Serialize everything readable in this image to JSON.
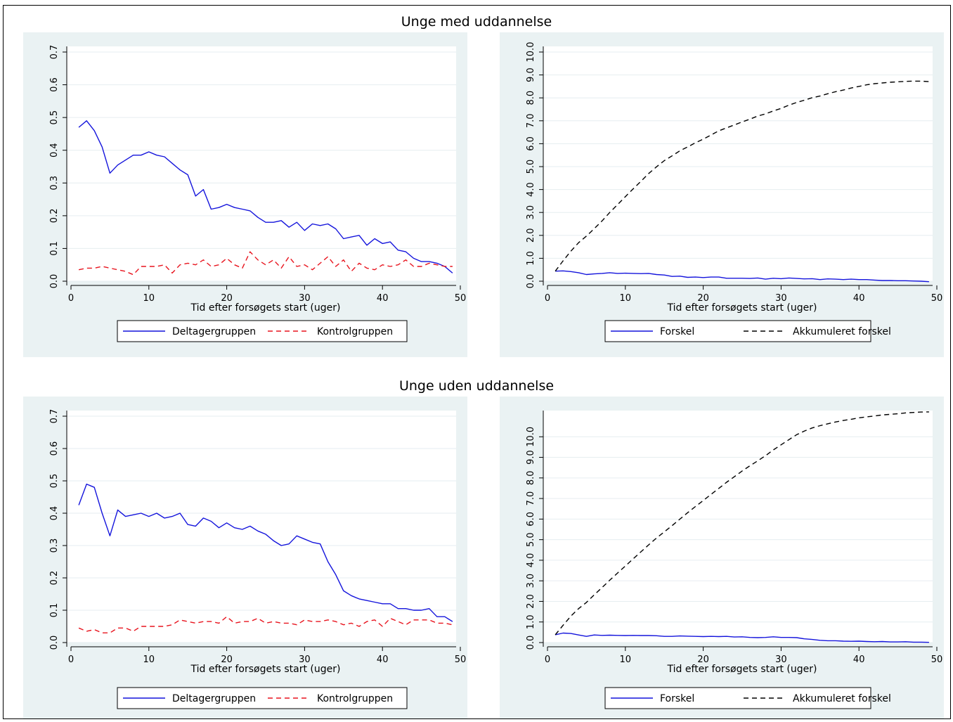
{
  "groups": [
    {
      "title": "Unge med uddannelse"
    },
    {
      "title": "Unge uden uddannelse"
    }
  ],
  "colors": {
    "panel_bg": "#eaf2f3",
    "blue": "#1414dc",
    "red": "#e8141e",
    "black": "#000000",
    "grid": "#ffffff"
  },
  "chart_data": [
    {
      "type": "line",
      "group": "Unge med uddannelse",
      "xlabel": "Tid efter forsøgets start (uger)",
      "ylabel": "",
      "xlim": [
        0,
        50
      ],
      "ylim": [
        0,
        0.7
      ],
      "xticks": [
        0,
        10,
        20,
        30,
        40,
        50
      ],
      "yticks": [
        0,
        0.1,
        0.2,
        0.3,
        0.4,
        0.5,
        0.6,
        0.7
      ],
      "ytick_labels": [
        "0.0",
        "0.1",
        "0.2",
        "0.3",
        "0.4",
        "0.5",
        "0.6",
        "0.7"
      ],
      "grid": true,
      "legend": "bottom",
      "series": [
        {
          "name": "Deltagergruppen",
          "color": "#1414dc",
          "dash": "solid",
          "x": [
            1,
            2,
            3,
            4,
            5,
            6,
            7,
            8,
            9,
            10,
            11,
            12,
            13,
            14,
            15,
            16,
            17,
            18,
            19,
            20,
            21,
            22,
            23,
            24,
            25,
            26,
            27,
            28,
            29,
            30,
            31,
            32,
            33,
            34,
            35,
            36,
            37,
            38,
            39,
            40,
            41,
            42,
            43,
            44,
            45,
            46,
            47,
            48,
            49
          ],
          "y": [
            0.47,
            0.49,
            0.46,
            0.41,
            0.33,
            0.355,
            0.37,
            0.385,
            0.385,
            0.395,
            0.385,
            0.38,
            0.36,
            0.34,
            0.325,
            0.26,
            0.28,
            0.22,
            0.225,
            0.235,
            0.225,
            0.22,
            0.215,
            0.195,
            0.18,
            0.18,
            0.185,
            0.165,
            0.18,
            0.155,
            0.175,
            0.17,
            0.175,
            0.16,
            0.13,
            0.135,
            0.14,
            0.11,
            0.13,
            0.115,
            0.12,
            0.095,
            0.09,
            0.07,
            0.06,
            0.06,
            0.055,
            0.045,
            0.025
          ]
        },
        {
          "name": "Kontrolgruppen",
          "color": "#e8141e",
          "dash": "dashed",
          "x": [
            1,
            2,
            3,
            4,
            5,
            6,
            7,
            8,
            9,
            10,
            11,
            12,
            13,
            14,
            15,
            16,
            17,
            18,
            19,
            20,
            21,
            22,
            23,
            24,
            25,
            26,
            27,
            28,
            29,
            30,
            31,
            32,
            33,
            34,
            35,
            36,
            37,
            38,
            39,
            40,
            41,
            42,
            43,
            44,
            45,
            46,
            47,
            48,
            49
          ],
          "y": [
            0.035,
            0.04,
            0.04,
            0.045,
            0.04,
            0.035,
            0.03,
            0.02,
            0.045,
            0.045,
            0.045,
            0.05,
            0.025,
            0.05,
            0.055,
            0.05,
            0.065,
            0.045,
            0.05,
            0.07,
            0.05,
            0.04,
            0.09,
            0.065,
            0.05,
            0.065,
            0.04,
            0.075,
            0.045,
            0.05,
            0.035,
            0.055,
            0.075,
            0.045,
            0.065,
            0.03,
            0.055,
            0.04,
            0.035,
            0.05,
            0.045,
            0.05,
            0.065,
            0.045,
            0.045,
            0.055,
            0.05,
            0.045,
            0.045
          ]
        }
      ]
    },
    {
      "type": "line",
      "group": "Unge med uddannelse",
      "xlabel": "Tid efter forsøgets start (uger)",
      "ylabel": "",
      "xlim": [
        0,
        50
      ],
      "ylim": [
        0,
        10
      ],
      "xticks": [
        0,
        10,
        20,
        30,
        40,
        50
      ],
      "yticks": [
        0,
        1,
        2,
        3,
        4,
        5,
        6,
        7,
        8,
        9,
        10
      ],
      "ytick_labels": [
        "0.0",
        "1.0",
        "2.0",
        "3.0",
        "4.0",
        "5.0",
        "6.0",
        "7.0",
        "8.0",
        "9.0",
        "10.0"
      ],
      "grid": true,
      "legend": "bottom",
      "series": [
        {
          "name": "Forskel",
          "color": "#1414dc",
          "dash": "solid",
          "x": [
            1,
            2,
            3,
            4,
            5,
            6,
            7,
            8,
            9,
            10,
            11,
            12,
            13,
            14,
            15,
            16,
            17,
            18,
            19,
            20,
            21,
            22,
            23,
            24,
            25,
            26,
            27,
            28,
            29,
            30,
            31,
            32,
            33,
            34,
            35,
            36,
            37,
            38,
            39,
            40,
            41,
            42,
            43,
            44,
            45,
            46,
            47,
            48,
            49
          ],
          "y": [
            0.44,
            0.45,
            0.42,
            0.37,
            0.29,
            0.32,
            0.34,
            0.37,
            0.34,
            0.35,
            0.34,
            0.33,
            0.34,
            0.29,
            0.27,
            0.21,
            0.22,
            0.17,
            0.18,
            0.16,
            0.18,
            0.18,
            0.13,
            0.13,
            0.13,
            0.12,
            0.14,
            0.09,
            0.13,
            0.11,
            0.14,
            0.12,
            0.1,
            0.11,
            0.07,
            0.1,
            0.09,
            0.07,
            0.09,
            0.07,
            0.07,
            0.05,
            0.03,
            0.03,
            0.02,
            0.02,
            0.01,
            0.0,
            -0.02
          ]
        },
        {
          "name": "Akkumuleret forskel",
          "color": "#000000",
          "dash": "dashed",
          "x": [
            1,
            2,
            3,
            4,
            5,
            6,
            7,
            8,
            9,
            10,
            11,
            12,
            13,
            14,
            15,
            16,
            17,
            18,
            19,
            20,
            21,
            22,
            23,
            24,
            25,
            26,
            27,
            28,
            29,
            30,
            31,
            32,
            33,
            34,
            35,
            36,
            37,
            38,
            39,
            40,
            41,
            42,
            43,
            44,
            45,
            46,
            47,
            48,
            49
          ],
          "y": [
            0.44,
            0.89,
            1.31,
            1.68,
            1.97,
            2.29,
            2.63,
            3.0,
            3.34,
            3.69,
            4.03,
            4.36,
            4.7,
            4.99,
            5.26,
            5.47,
            5.69,
            5.86,
            6.04,
            6.2,
            6.38,
            6.56,
            6.69,
            6.82,
            6.95,
            7.07,
            7.21,
            7.3,
            7.43,
            7.54,
            7.68,
            7.8,
            7.9,
            8.01,
            8.08,
            8.18,
            8.27,
            8.34,
            8.43,
            8.5,
            8.57,
            8.62,
            8.65,
            8.68,
            8.7,
            8.72,
            8.73,
            8.73,
            8.71
          ]
        }
      ]
    },
    {
      "type": "line",
      "group": "Unge uden uddannelse",
      "xlabel": "Tid efter forsøgets start (uger)",
      "ylabel": "",
      "xlim": [
        0,
        50
      ],
      "ylim": [
        0,
        0.7
      ],
      "xticks": [
        0,
        10,
        20,
        30,
        40,
        50
      ],
      "yticks": [
        0,
        0.1,
        0.2,
        0.3,
        0.4,
        0.5,
        0.6,
        0.7
      ],
      "ytick_labels": [
        "0.0",
        "0.1",
        "0.2",
        "0.3",
        "0.4",
        "0.5",
        "0.6",
        "0.7"
      ],
      "grid": true,
      "legend": "bottom",
      "series": [
        {
          "name": "Deltagergruppen",
          "color": "#1414dc",
          "dash": "solid",
          "x": [
            1,
            2,
            3,
            4,
            5,
            6,
            7,
            8,
            9,
            10,
            11,
            12,
            13,
            14,
            15,
            16,
            17,
            18,
            19,
            20,
            21,
            22,
            23,
            24,
            25,
            26,
            27,
            28,
            29,
            30,
            31,
            32,
            33,
            34,
            35,
            36,
            37,
            38,
            39,
            40,
            41,
            42,
            43,
            44,
            45,
            46,
            47,
            48,
            49
          ],
          "y": [
            0.425,
            0.49,
            0.48,
            0.4,
            0.33,
            0.41,
            0.39,
            0.395,
            0.4,
            0.39,
            0.4,
            0.385,
            0.39,
            0.4,
            0.365,
            0.36,
            0.385,
            0.375,
            0.355,
            0.37,
            0.355,
            0.35,
            0.36,
            0.345,
            0.335,
            0.315,
            0.3,
            0.305,
            0.33,
            0.32,
            0.31,
            0.305,
            0.25,
            0.21,
            0.16,
            0.145,
            0.135,
            0.13,
            0.125,
            0.12,
            0.12,
            0.105,
            0.105,
            0.1,
            0.1,
            0.105,
            0.08,
            0.08,
            0.065
          ]
        },
        {
          "name": "Kontrolgruppen",
          "color": "#e8141e",
          "dash": "dashed",
          "x": [
            1,
            2,
            3,
            4,
            5,
            6,
            7,
            8,
            9,
            10,
            11,
            12,
            13,
            14,
            15,
            16,
            17,
            18,
            19,
            20,
            21,
            22,
            23,
            24,
            25,
            26,
            27,
            28,
            29,
            30,
            31,
            32,
            33,
            34,
            35,
            36,
            37,
            38,
            39,
            40,
            41,
            42,
            43,
            44,
            45,
            46,
            47,
            48,
            49
          ],
          "y": [
            0.045,
            0.035,
            0.04,
            0.03,
            0.03,
            0.045,
            0.045,
            0.035,
            0.05,
            0.05,
            0.05,
            0.05,
            0.055,
            0.07,
            0.065,
            0.06,
            0.065,
            0.065,
            0.06,
            0.08,
            0.06,
            0.065,
            0.065,
            0.075,
            0.06,
            0.065,
            0.06,
            0.06,
            0.055,
            0.07,
            0.065,
            0.065,
            0.07,
            0.065,
            0.055,
            0.06,
            0.05,
            0.065,
            0.07,
            0.05,
            0.075,
            0.065,
            0.055,
            0.07,
            0.07,
            0.07,
            0.06,
            0.06,
            0.055
          ]
        }
      ]
    },
    {
      "type": "line",
      "group": "Unge uden uddannelse",
      "xlabel": "Tid efter forsøgets start (uger)",
      "ylabel": "",
      "xlim": [
        0,
        50
      ],
      "ylim": [
        0,
        11
      ],
      "xticks": [
        0,
        10,
        20,
        30,
        40,
        50
      ],
      "yticks": [
        0,
        1,
        2,
        3,
        4,
        5,
        6,
        7,
        8,
        9,
        10
      ],
      "ytick_labels": [
        "0.0",
        "1.0",
        "2.0",
        "3.0",
        "4.0",
        "5.0",
        "6.0",
        "7.0",
        "8.0",
        "9.0",
        "10.0"
      ],
      "grid": true,
      "legend": "bottom",
      "series": [
        {
          "name": "Forskel",
          "color": "#1414dc",
          "dash": "solid",
          "x": [
            1,
            2,
            3,
            4,
            5,
            6,
            7,
            8,
            9,
            10,
            11,
            12,
            13,
            14,
            15,
            16,
            17,
            18,
            19,
            20,
            21,
            22,
            23,
            24,
            25,
            26,
            27,
            28,
            29,
            30,
            31,
            32,
            33,
            34,
            35,
            36,
            37,
            38,
            39,
            40,
            41,
            42,
            43,
            44,
            45,
            46,
            47,
            48,
            49
          ],
          "y": [
            0.38,
            0.46,
            0.44,
            0.37,
            0.3,
            0.37,
            0.35,
            0.36,
            0.35,
            0.34,
            0.35,
            0.34,
            0.34,
            0.33,
            0.3,
            0.3,
            0.32,
            0.31,
            0.3,
            0.29,
            0.3,
            0.29,
            0.3,
            0.27,
            0.28,
            0.25,
            0.24,
            0.25,
            0.28,
            0.25,
            0.25,
            0.24,
            0.18,
            0.15,
            0.11,
            0.09,
            0.09,
            0.07,
            0.06,
            0.07,
            0.05,
            0.04,
            0.05,
            0.03,
            0.03,
            0.04,
            0.02,
            0.02,
            0.01
          ]
        },
        {
          "name": "Akkumuleret forskel",
          "color": "#000000",
          "dash": "dashed",
          "x": [
            1,
            2,
            3,
            4,
            5,
            6,
            7,
            8,
            9,
            10,
            11,
            12,
            13,
            14,
            15,
            16,
            17,
            18,
            19,
            20,
            21,
            22,
            23,
            24,
            25,
            26,
            27,
            28,
            29,
            30,
            31,
            32,
            33,
            34,
            35,
            36,
            37,
            38,
            39,
            40,
            41,
            42,
            43,
            44,
            45,
            46,
            47,
            48,
            49
          ],
          "y": [
            0.38,
            0.84,
            1.28,
            1.65,
            1.95,
            2.32,
            2.67,
            3.03,
            3.38,
            3.72,
            4.07,
            4.41,
            4.75,
            5.08,
            5.38,
            5.68,
            6.0,
            6.31,
            6.61,
            6.9,
            7.2,
            7.49,
            7.79,
            8.06,
            8.34,
            8.59,
            8.83,
            9.08,
            9.36,
            9.61,
            9.86,
            10.1,
            10.28,
            10.43,
            10.54,
            10.63,
            10.72,
            10.79,
            10.85,
            10.92,
            10.97,
            11.01,
            11.06,
            11.09,
            11.12,
            11.16,
            11.18,
            11.2,
            11.21
          ]
        }
      ]
    }
  ]
}
